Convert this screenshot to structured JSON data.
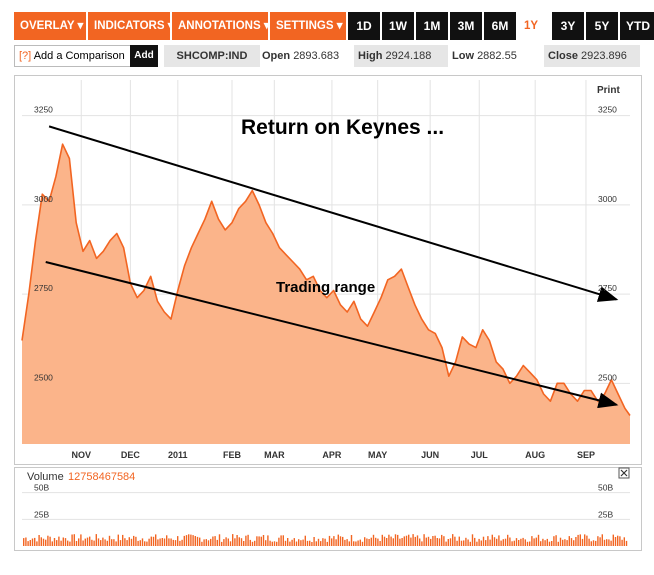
{
  "toolbar": {
    "menus": [
      "OVERLAY ▾",
      "INDICATORS ▾",
      "ANNOTATIONS ▾",
      "SETTINGS ▾"
    ],
    "ranges": [
      "1D",
      "1W",
      "1M",
      "3M",
      "6M",
      "1Y",
      "3Y",
      "5Y",
      "YTD"
    ],
    "active_range": "1Y"
  },
  "infobar": {
    "compare_q": "[?]",
    "compare_label": "Add a Comparison",
    "add_label": "Add",
    "ticker": "SHCOMP:IND",
    "open_label": "Open",
    "open_value": "2893.683",
    "high_label": "High",
    "high_value": "2924.188",
    "low_label": "Low",
    "low_value": "2882.55",
    "close_label": "Close",
    "close_value": "2923.896"
  },
  "chart": {
    "print_label": "Print",
    "annotation_title": "Return on Keynes ...",
    "annotation_range": "Trading range",
    "volume_label": "Volume",
    "volume_value": "12758467584",
    "close_icon": "close-icon",
    "area_color": "#fbb48a",
    "line_color": "#f26522"
  },
  "chart_data": {
    "type": "area",
    "ylim": [
      2330,
      3350
    ],
    "y_ticks": [
      2500,
      2750,
      3000,
      3250
    ],
    "x_labels": [
      {
        "label": "NOV",
        "x": 35
      },
      {
        "label": "DEC",
        "x": 64
      },
      {
        "label": "2011",
        "x": 92
      },
      {
        "label": "FEB",
        "x": 124
      },
      {
        "label": "MAR",
        "x": 149
      },
      {
        "label": "APR",
        "x": 183
      },
      {
        "label": "MAY",
        "x": 210
      },
      {
        "label": "JUN",
        "x": 241
      },
      {
        "label": "JUL",
        "x": 270
      },
      {
        "label": "AUG",
        "x": 303
      },
      {
        "label": "SEP",
        "x": 333
      }
    ],
    "x_range": [
      0,
      359
    ],
    "points": [
      [
        0,
        2620
      ],
      [
        4,
        2750
      ],
      [
        8,
        2900
      ],
      [
        12,
        3030
      ],
      [
        16,
        3010
      ],
      [
        20,
        3080
      ],
      [
        24,
        3170
      ],
      [
        28,
        3130
      ],
      [
        32,
        2950
      ],
      [
        36,
        2870
      ],
      [
        40,
        2900
      ],
      [
        44,
        2850
      ],
      [
        48,
        2870
      ],
      [
        52,
        2900
      ],
      [
        56,
        2920
      ],
      [
        60,
        2880
      ],
      [
        64,
        2780
      ],
      [
        68,
        2740
      ],
      [
        72,
        2760
      ],
      [
        76,
        2800
      ],
      [
        80,
        2730
      ],
      [
        84,
        2700
      ],
      [
        88,
        2680
      ],
      [
        92,
        2760
      ],
      [
        96,
        2830
      ],
      [
        100,
        2880
      ],
      [
        104,
        2920
      ],
      [
        108,
        2960
      ],
      [
        112,
        3010
      ],
      [
        116,
        2960
      ],
      [
        120,
        2930
      ],
      [
        124,
        2950
      ],
      [
        128,
        2990
      ],
      [
        132,
        3010
      ],
      [
        136,
        3040
      ],
      [
        140,
        3000
      ],
      [
        144,
        2950
      ],
      [
        148,
        2920
      ],
      [
        152,
        2880
      ],
      [
        156,
        2860
      ],
      [
        160,
        2840
      ],
      [
        164,
        2820
      ],
      [
        168,
        2790
      ],
      [
        172,
        2800
      ],
      [
        176,
        2760
      ],
      [
        180,
        2740
      ],
      [
        184,
        2760
      ],
      [
        188,
        2720
      ],
      [
        192,
        2700
      ],
      [
        196,
        2730
      ],
      [
        200,
        2680
      ],
      [
        204,
        2660
      ],
      [
        208,
        2700
      ],
      [
        212,
        2740
      ],
      [
        216,
        2790
      ],
      [
        220,
        2800
      ],
      [
        224,
        2820
      ],
      [
        228,
        2770
      ],
      [
        232,
        2720
      ],
      [
        236,
        2680
      ],
      [
        240,
        2650
      ],
      [
        244,
        2640
      ],
      [
        248,
        2600
      ],
      [
        252,
        2520
      ],
      [
        256,
        2560
      ],
      [
        260,
        2630
      ],
      [
        264,
        2610
      ],
      [
        268,
        2600
      ],
      [
        272,
        2650
      ],
      [
        276,
        2620
      ],
      [
        280,
        2560
      ],
      [
        284,
        2540
      ],
      [
        288,
        2500
      ],
      [
        292,
        2520
      ],
      [
        296,
        2550
      ],
      [
        300,
        2530
      ],
      [
        304,
        2510
      ],
      [
        308,
        2470
      ],
      [
        312,
        2450
      ],
      [
        316,
        2500
      ],
      [
        320,
        2500
      ],
      [
        324,
        2470
      ],
      [
        328,
        2450
      ],
      [
        332,
        2480
      ],
      [
        336,
        2480
      ],
      [
        340,
        2450
      ],
      [
        344,
        2470
      ],
      [
        348,
        2510
      ],
      [
        352,
        2470
      ],
      [
        356,
        2430
      ],
      [
        359,
        2410
      ]
    ],
    "trendlines": [
      {
        "from": [
          16,
          3220
        ],
        "to": [
          351,
          2735
        ]
      },
      {
        "from": [
          14,
          2840
        ],
        "to": [
          351,
          2440
        ]
      }
    ],
    "volume_ticks": [
      "25B",
      "50B"
    ]
  }
}
